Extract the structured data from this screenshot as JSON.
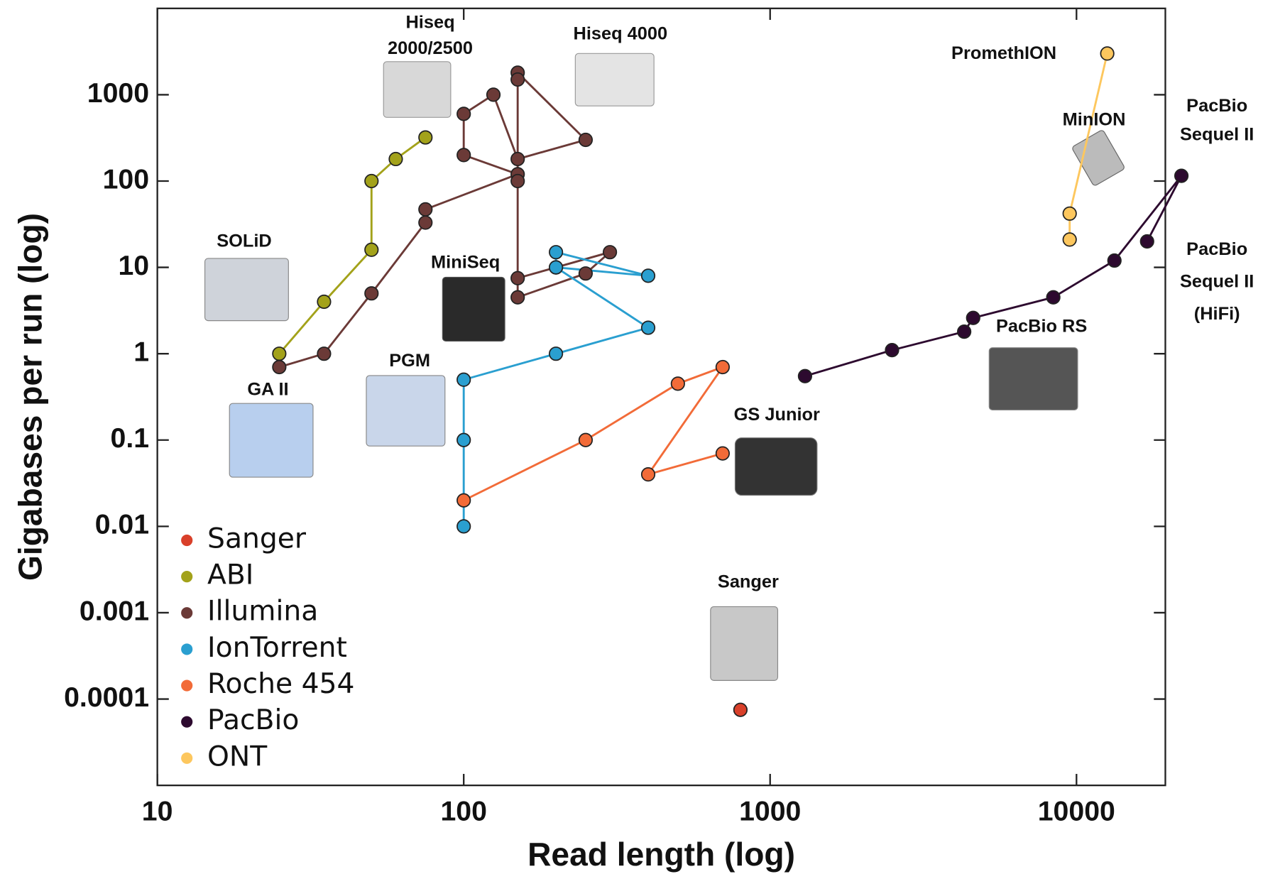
{
  "chart_data": {
    "type": "scatter",
    "x_label": "Read length (log)",
    "y_label": "Gigabases per run (log)",
    "x_scale": "log",
    "y_scale": "log",
    "xlim": [
      10,
      19500
    ],
    "ylim": [
      1e-05,
      10000
    ],
    "xticks": [
      10,
      100,
      1000,
      10000
    ],
    "yticks": [
      0.0001,
      0.001,
      0.01,
      0.1,
      1,
      10,
      100,
      1000
    ],
    "legend": "lower left",
    "connect_points": true,
    "series": [
      {
        "name": "Sanger",
        "color": "#d9402a",
        "x": [
          800
        ],
        "y": [
          7.5e-05
        ]
      },
      {
        "name": "ABI",
        "color": "#a3a21a",
        "x": [
          25,
          35,
          50,
          50,
          60,
          75
        ],
        "y": [
          1,
          4,
          16,
          100,
          180,
          320
        ]
      },
      {
        "name": "Illumina",
        "color": "#6b3a37",
        "x": [
          25,
          35,
          50,
          75,
          75,
          150,
          100,
          100,
          125,
          150,
          250,
          150,
          150,
          150,
          150,
          250,
          300,
          150
        ],
        "y": [
          0.7,
          1,
          5,
          33,
          47,
          120,
          200,
          600,
          1000,
          180,
          300,
          1800,
          1500,
          100,
          4.5,
          8.5,
          15,
          7.5
        ]
      },
      {
        "name": "IonTorrent",
        "color": "#2a9fd0",
        "x": [
          100,
          100,
          100,
          200,
          400,
          200,
          400,
          200,
          200
        ],
        "y": [
          0.01,
          0.1,
          0.5,
          1,
          2,
          10,
          8,
          15,
          10
        ]
      },
      {
        "name": "Roche 454",
        "color": "#f26b38",
        "x": [
          100,
          250,
          500,
          700,
          400,
          700
        ],
        "y": [
          0.02,
          0.1,
          0.45,
          0.7,
          0.04,
          0.07
        ]
      },
      {
        "name": "PacBio",
        "color": "#2d0a2f",
        "x": [
          1300,
          2500,
          4300,
          4600,
          8400,
          13300,
          22000,
          17000
        ],
        "y": [
          0.55,
          1.1,
          1.8,
          2.6,
          4.5,
          12,
          115,
          20
        ]
      },
      {
        "name": "ONT",
        "color": "#fdc75e",
        "x": [
          9500,
          9500,
          12600
        ],
        "y": [
          21,
          42,
          3000
        ]
      }
    ],
    "annotations": [
      [
        "Hiseq",
        "2000/2500"
      ],
      [
        "Hiseq 4000"
      ],
      [
        "PromethION"
      ],
      [
        "MinION"
      ],
      [
        "PacBio",
        "Sequel II"
      ],
      [
        "PacBio",
        "Sequel II",
        "(HiFi)"
      ],
      [
        "SOLiD"
      ],
      [
        "MiniSeq"
      ],
      [
        "PGM"
      ],
      [
        "GA II"
      ],
      [
        "GS Junior"
      ],
      [
        "Sanger"
      ],
      [
        "PacBio RS"
      ]
    ]
  }
}
